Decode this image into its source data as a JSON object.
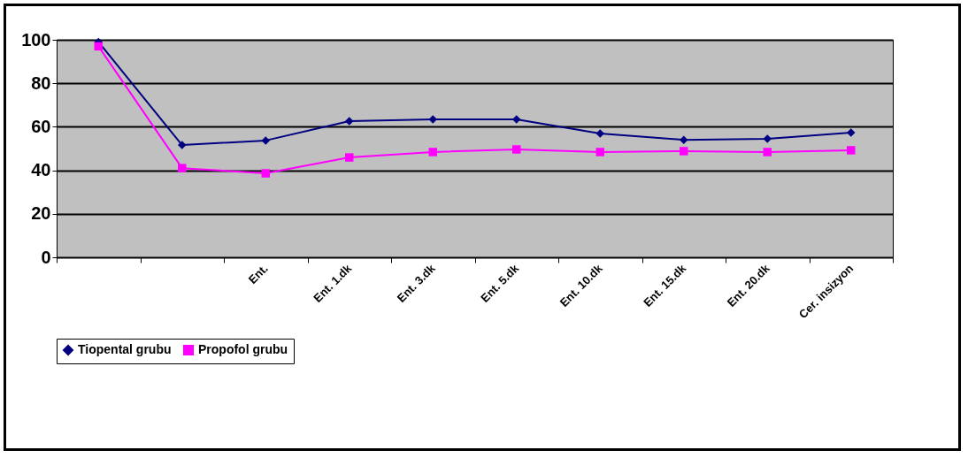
{
  "chart_data": {
    "type": "line",
    "categories": [
      null,
      null,
      "Ent.",
      "Ent. 1.dk",
      "Ent. 3.dk",
      "Ent. 5.dk",
      "Ent. 10.dk",
      "Ent. 15.dk",
      "Ent. 20.dk",
      "Cer. insizyon"
    ],
    "series": [
      {
        "name": "Tiopental grubu",
        "color": "#000080",
        "marker": "diamond",
        "values": [
          99,
          51.6,
          53.7,
          62.6,
          63.4,
          63.4,
          56.9,
          54,
          54.5,
          57.3
        ]
      },
      {
        "name": "Propofol grubu",
        "color": "#ff00ff",
        "marker": "square",
        "values": [
          97,
          41,
          38.6,
          45.9,
          48.4,
          49.6,
          48.4,
          48.8,
          48.4,
          49.2
        ]
      }
    ],
    "ylim": [
      0,
      100
    ],
    "yticks": [
      0,
      20,
      40,
      60,
      80,
      100
    ],
    "grid": "y",
    "legend": "bottom"
  }
}
